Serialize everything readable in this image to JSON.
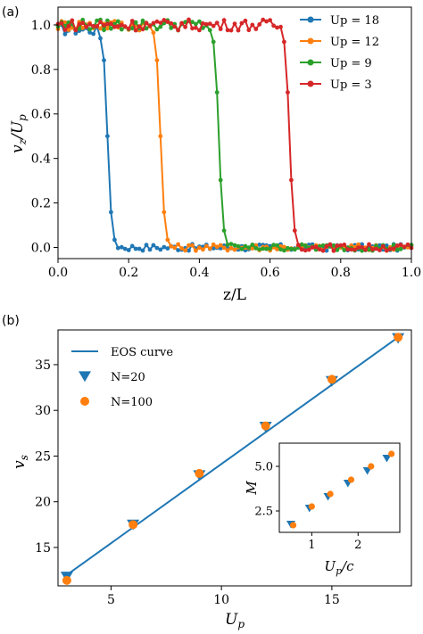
{
  "chart_data": [
    {
      "panel_label": "(a)",
      "type": "line",
      "xlabel": "z/L",
      "ylabel": "v_z/U_p",
      "xlim": [
        0.0,
        1.0
      ],
      "ylim": [
        -0.05,
        1.08
      ],
      "xticks": [
        "0.0",
        "0.2",
        "0.4",
        "0.6",
        "0.8",
        "1.0"
      ],
      "yticks": [
        "0.0",
        "0.2",
        "0.4",
        "0.6",
        "0.8",
        "1.0"
      ],
      "grid": false,
      "legend_position": "top-right",
      "series": [
        {
          "name": "Up = 18",
          "color": "#1f77b4",
          "front": 0.14
        },
        {
          "name": "Up = 12",
          "color": "#ff7f0e",
          "front": 0.29
        },
        {
          "name": "Up = 9",
          "color": "#2ca02c",
          "front": 0.455
        },
        {
          "name": "Up = 3",
          "color": "#d62728",
          "front": 0.655
        }
      ]
    },
    {
      "panel_label": "(b)",
      "type": "scatter",
      "xlabel": "U_p",
      "ylabel": "v_s",
      "xlim": [
        2.6,
        18.6
      ],
      "ylim": [
        10.8,
        38.8
      ],
      "xticks": [
        "5",
        "10",
        "15"
      ],
      "yticks": [
        "15",
        "20",
        "25",
        "30",
        "35"
      ],
      "grid": false,
      "legend_position": "top-left",
      "series": [
        {
          "name": "EOS curve",
          "kind": "line",
          "color": "#1f77b4",
          "x": [
            3,
            18
          ],
          "y": [
            12.0,
            38.0
          ]
        },
        {
          "name": "N=20",
          "kind": "triangle",
          "color": "#1f77b4",
          "x": [
            3,
            6,
            9,
            12,
            15,
            18
          ],
          "y": [
            11.8,
            17.5,
            22.9,
            28.2,
            33.2,
            37.9
          ]
        },
        {
          "name": "N=100",
          "kind": "circle",
          "color": "#ff7f0e",
          "x": [
            3,
            6,
            9,
            12,
            15,
            18
          ],
          "y": [
            11.4,
            17.5,
            23.1,
            28.3,
            33.4,
            38.0
          ]
        }
      ],
      "inset": {
        "xlabel": "U_p/c",
        "ylabel": "M",
        "xlim": [
          0.3,
          2.9
        ],
        "ylim": [
          1.3,
          6.3
        ],
        "xticks": [
          "1",
          "2"
        ],
        "yticks": [
          "2.5",
          "5.0"
        ],
        "series": [
          {
            "name": "N=20",
            "kind": "triangle",
            "color": "#1f77b4",
            "x": [
              0.55,
              0.95,
              1.35,
              1.78,
              2.2,
              2.62
            ],
            "y": [
              1.75,
              2.65,
              3.3,
              4.05,
              4.75,
              5.45
            ]
          },
          {
            "name": "N=100",
            "kind": "circle",
            "color": "#ff7f0e",
            "x": [
              0.6,
              1.0,
              1.4,
              1.85,
              2.28,
              2.72
            ],
            "y": [
              1.7,
              2.75,
              3.45,
              4.25,
              5.0,
              5.7
            ]
          }
        ]
      }
    }
  ]
}
